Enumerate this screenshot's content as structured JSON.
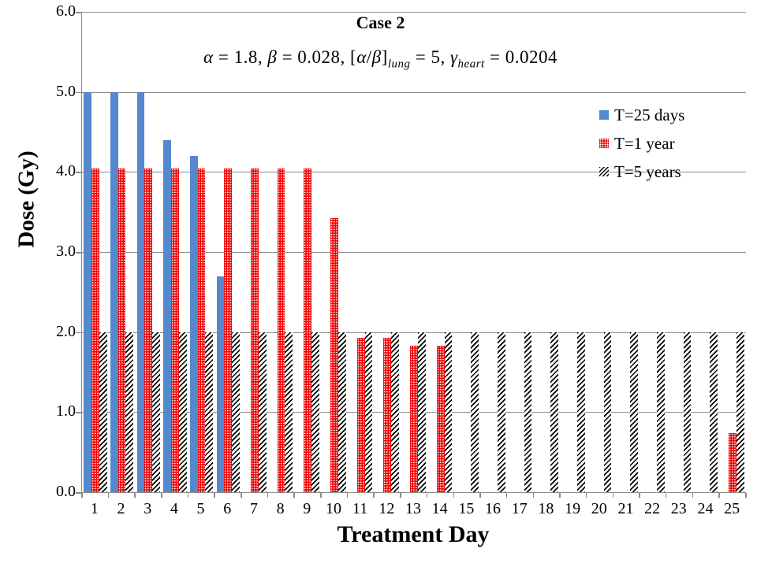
{
  "title": {
    "text": "Case 2"
  },
  "formula": {
    "v1": "α",
    "t1": " = 1.8, ",
    "v2": "β",
    "t2": " = 0.028, [",
    "v3": "α",
    "t3": "/",
    "v4": "β",
    "t4": "]",
    "s1": "lung",
    "t5": " = 5, ",
    "v5": "γ",
    "s2": "heart",
    "t6": " = 0.0204"
  },
  "axes": {
    "y_label": "Dose (Gy)",
    "x_label": "Treatment Day",
    "y_ticks": [
      "6.0",
      "5.0",
      "4.0",
      "3.0",
      "2.0",
      "1.0",
      "0.0"
    ]
  },
  "legend": {
    "items": [
      {
        "label": "T=25 days",
        "swatch": "blue-solid"
      },
      {
        "label": "T=1 year",
        "swatch": "red-dotted"
      },
      {
        "label": "T=5 years",
        "swatch": "black-diagonal-hatch"
      }
    ]
  },
  "colors": {
    "blue": "#5588CC",
    "red": "#F00000",
    "hatch": "#000000",
    "grid": "#8C8C8C",
    "text": "#000000"
  },
  "chart_data": {
    "type": "bar",
    "title": "Case 2",
    "subtitle": "α = 1.8, β = 0.028, [α/β]_lung = 5, γ_heart = 0.0204",
    "xlabel": "Treatment Day",
    "ylabel": "Dose (Gy)",
    "ylim": [
      0,
      6
    ],
    "ytick_step": 1.0,
    "grid": "horizontal",
    "legend_position": "top-right",
    "categories": [
      1,
      2,
      3,
      4,
      5,
      6,
      7,
      8,
      9,
      10,
      11,
      12,
      13,
      14,
      15,
      16,
      17,
      18,
      19,
      20,
      21,
      22,
      23,
      24,
      25
    ],
    "series": [
      {
        "name": "T=25 days",
        "style": "solid-blue",
        "values": [
          5.0,
          5.0,
          5.0,
          4.4,
          4.2,
          2.7,
          0,
          0,
          0,
          0,
          0,
          0,
          0,
          0,
          0,
          0,
          0,
          0,
          0,
          0,
          0,
          0,
          0,
          0,
          0
        ]
      },
      {
        "name": "T=1 year",
        "style": "red-dots",
        "values": [
          4.04,
          4.04,
          4.04,
          4.04,
          4.04,
          4.04,
          4.04,
          4.04,
          4.04,
          3.42,
          1.93,
          1.93,
          1.83,
          1.83,
          0,
          0,
          0,
          0,
          0,
          0,
          0,
          0,
          0,
          0,
          0.74
        ]
      },
      {
        "name": "T=5 years",
        "style": "black-hatch",
        "values": [
          2.0,
          2.0,
          2.0,
          2.0,
          2.0,
          2.0,
          2.0,
          2.0,
          2.0,
          2.0,
          2.0,
          2.0,
          2.0,
          2.0,
          2.0,
          2.0,
          2.0,
          2.0,
          2.0,
          2.0,
          2.0,
          2.0,
          2.0,
          2.0,
          2.0
        ]
      }
    ]
  }
}
